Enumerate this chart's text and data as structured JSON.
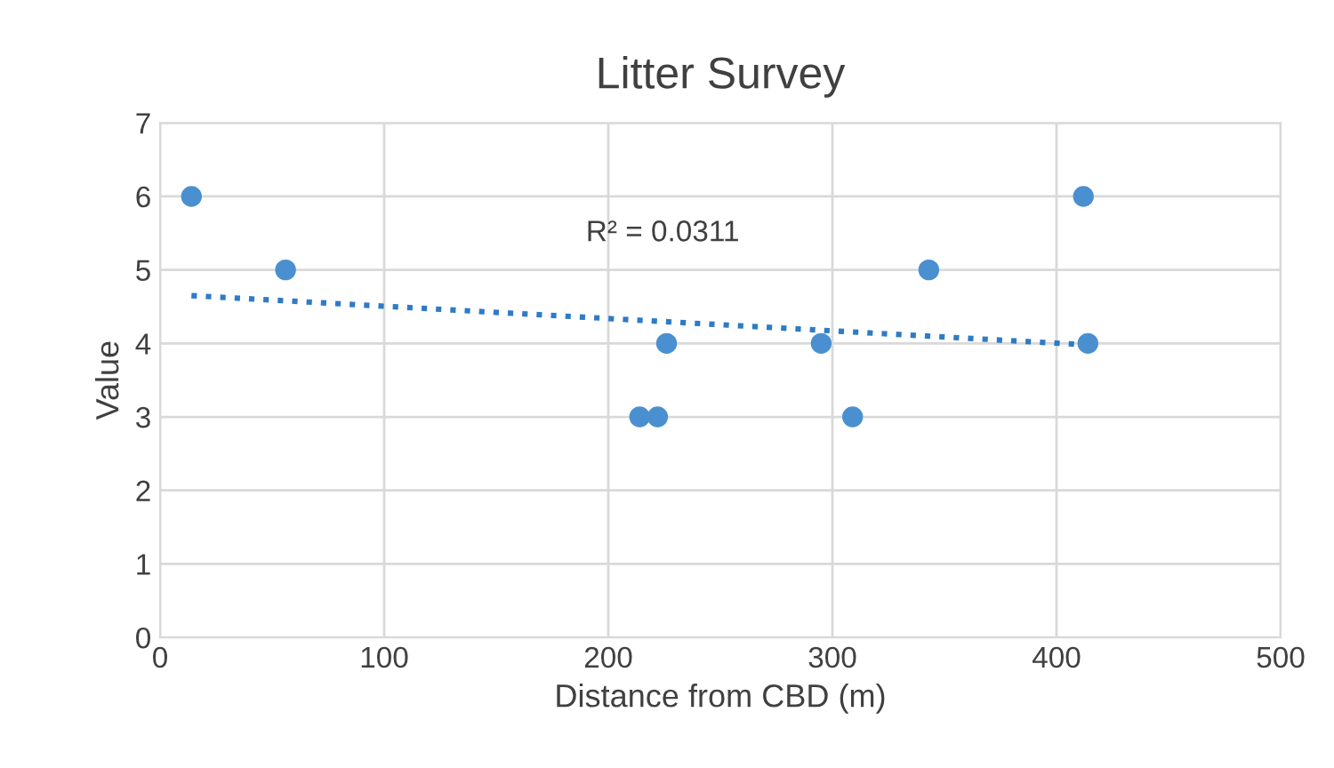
{
  "chart_data": {
    "type": "scatter",
    "title": "Litter Survey",
    "xlabel": "Distance from CBD (m)",
    "ylabel": "Value",
    "xlim": [
      0,
      500
    ],
    "xticks": [
      0,
      100,
      200,
      300,
      400,
      500
    ],
    "ylim": [
      0,
      7
    ],
    "yticks": [
      0,
      1,
      2,
      3,
      4,
      5,
      6,
      7
    ],
    "grid": true,
    "marker": "circle",
    "series": [
      {
        "color": "#4a90d0",
        "x": [
          14,
          56,
          214,
          222,
          226,
          295,
          309,
          343,
          412,
          414
        ],
        "values": [
          6,
          5,
          3,
          3,
          4,
          4,
          3,
          5,
          6,
          4
        ]
      },
      {
        "type": "line",
        "color": "#2e7bc6",
        "line_style": "dotted",
        "marker": "none",
        "x": [
          14,
          414
        ],
        "values": [
          4.65,
          3.98
        ]
      }
    ],
    "annotations": [
      "R² = 0.0311"
    ]
  }
}
